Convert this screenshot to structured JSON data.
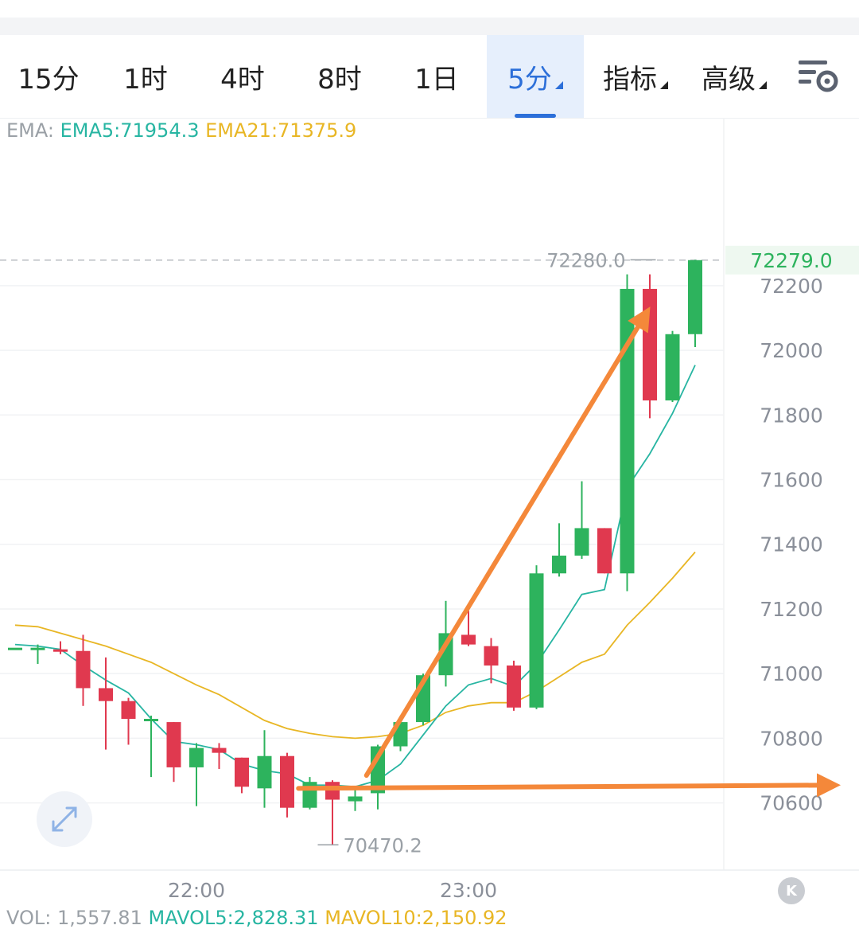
{
  "tabs": [
    {
      "label": "15分",
      "active": false
    },
    {
      "label": "1时",
      "active": false
    },
    {
      "label": "4时",
      "active": false
    },
    {
      "label": "8时",
      "active": false
    },
    {
      "label": "1日",
      "active": false
    },
    {
      "label": "5分",
      "active": true,
      "dropdown": true
    },
    {
      "label": "指标",
      "active": false,
      "dropdown": true
    },
    {
      "label": "高级",
      "active": false,
      "dropdown": true
    }
  ],
  "settings_icon": "chart-settings-icon",
  "ema_legend": {
    "label": "EMA:",
    "ema5": "EMA5:71954.3",
    "ema21": "EMA21:71375.9"
  },
  "vol_legend": {
    "vol": "VOL: 1,557.81",
    "mavol5": "MAVOL5:2,828.31",
    "mavol10": "MAVOL10:2,150.92"
  },
  "expand_icon": "expand-arrows-icon",
  "k_badge": "K",
  "colors": {
    "up": "#2db35d",
    "down": "#e0394f",
    "ema5": "#27b5a2",
    "ema21": "#e8b624",
    "annotation": "#f4883a",
    "active_tab": "#2c6fd9"
  },
  "chart_data": {
    "type": "candlestick",
    "ylim": [
      70370,
      72670
    ],
    "y_ticks": [
      "72200",
      "72000",
      "71800",
      "71600",
      "71400",
      "71200",
      "71000",
      "70800",
      "70600"
    ],
    "x_ticks": [
      {
        "label": "22:00",
        "index": 8
      },
      {
        "label": "23:00",
        "index": 20
      }
    ],
    "last_price_label": "72279.0",
    "high_marker": {
      "label": "72280.0",
      "value": 72280,
      "index": 27
    },
    "low_marker": {
      "label": "70470.2",
      "value": 70470.2,
      "index": 13
    },
    "candles": [
      {
        "o": 71080,
        "h": 71080,
        "l": 71080,
        "c": 71080
      },
      {
        "o": 71080,
        "h": 71090,
        "l": 71030,
        "c": 71080
      },
      {
        "o": 71075,
        "h": 71100,
        "l": 71060,
        "c": 71070
      },
      {
        "o": 71070,
        "h": 71120,
        "l": 70900,
        "c": 70955
      },
      {
        "o": 70955,
        "h": 71050,
        "l": 70765,
        "c": 70915
      },
      {
        "o": 70915,
        "h": 70925,
        "l": 70780,
        "c": 70860
      },
      {
        "o": 70860,
        "h": 70870,
        "l": 70680,
        "c": 70860
      },
      {
        "o": 70850,
        "h": 70850,
        "l": 70665,
        "c": 70710
      },
      {
        "o": 70710,
        "h": 70785,
        "l": 70590,
        "c": 70770
      },
      {
        "o": 70770,
        "h": 70785,
        "l": 70705,
        "c": 70755
      },
      {
        "o": 70740,
        "h": 70740,
        "l": 70630,
        "c": 70650
      },
      {
        "o": 70645,
        "h": 70825,
        "l": 70585,
        "c": 70745
      },
      {
        "o": 70745,
        "h": 70755,
        "l": 70555,
        "c": 70585
      },
      {
        "o": 70585,
        "h": 70680,
        "l": 70580,
        "c": 70665
      },
      {
        "o": 70665,
        "h": 70670,
        "l": 70470,
        "c": 70610
      },
      {
        "o": 70605,
        "h": 70640,
        "l": 70575,
        "c": 70620
      },
      {
        "o": 70630,
        "h": 70780,
        "l": 70580,
        "c": 70775
      },
      {
        "o": 70775,
        "h": 70870,
        "l": 70760,
        "c": 70850
      },
      {
        "o": 70850,
        "h": 71000,
        "l": 70840,
        "c": 70995
      },
      {
        "o": 70995,
        "h": 71225,
        "l": 70960,
        "c": 71125
      },
      {
        "o": 71120,
        "h": 71195,
        "l": 71085,
        "c": 71090
      },
      {
        "o": 71085,
        "h": 71110,
        "l": 70970,
        "c": 71025
      },
      {
        "o": 71025,
        "h": 71040,
        "l": 70885,
        "c": 70895
      },
      {
        "o": 70895,
        "h": 71335,
        "l": 70890,
        "c": 71310
      },
      {
        "o": 71310,
        "h": 71465,
        "l": 71300,
        "c": 71365
      },
      {
        "o": 71365,
        "h": 71595,
        "l": 71355,
        "c": 71450
      },
      {
        "o": 71450,
        "h": 71450,
        "l": 71310,
        "c": 71310
      },
      {
        "o": 71310,
        "h": 72235,
        "l": 71255,
        "c": 72190
      },
      {
        "o": 72190,
        "h": 72235,
        "l": 71790,
        "c": 71845
      },
      {
        "o": 71845,
        "h": 72060,
        "l": 71840,
        "c": 72050
      },
      {
        "o": 72050,
        "h": 72280,
        "l": 72010,
        "c": 72279
      }
    ],
    "ema5": [
      71090,
      71085,
      71075,
      71025,
      70980,
      70940,
      70860,
      70790,
      70780,
      70765,
      70720,
      70700,
      70690,
      70655,
      70655,
      70650,
      70670,
      70720,
      70810,
      70900,
      70965,
      70985,
      70960,
      71030,
      71135,
      71245,
      71260,
      71575,
      71680,
      71805,
      71954.3
    ],
    "ema21": [
      71150,
      71145,
      71125,
      71105,
      71085,
      71060,
      71035,
      71000,
      70965,
      70935,
      70895,
      70855,
      70830,
      70815,
      70805,
      70800,
      70805,
      70815,
      70840,
      70880,
      70900,
      70910,
      70910,
      70945,
      70990,
      71035,
      71060,
      71150,
      71220,
      71295,
      71375.9
    ],
    "annotations": [
      {
        "type": "arrow",
        "from": {
          "index": 15.5,
          "value": 70685
        },
        "to": {
          "index": 27.8,
          "value": 72110
        }
      },
      {
        "type": "arrow",
        "from": {
          "index": 12.5,
          "value": 70645
        },
        "to": {
          "index": 36.0,
          "value": 70655
        }
      }
    ]
  }
}
